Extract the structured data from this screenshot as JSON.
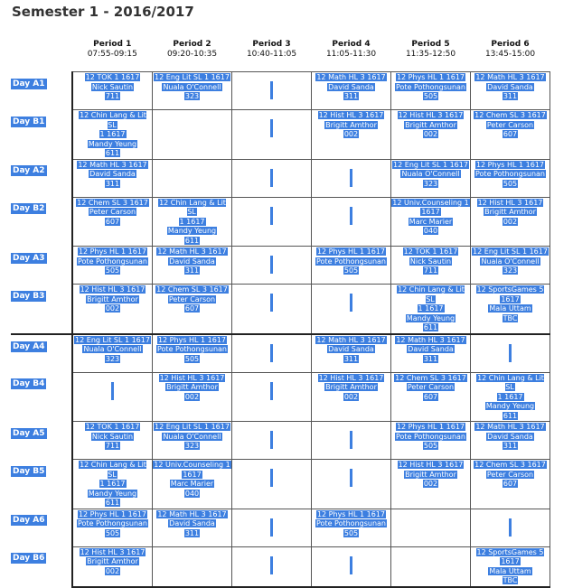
{
  "title": "Semester 1 - 2016/2017",
  "periods": [
    {
      "name": "Period 1",
      "time": "07:55-09:15"
    },
    {
      "name": "Period 2",
      "time": "09:20-10:35"
    },
    {
      "name": "Period 3",
      "time": "10:40-11:05"
    },
    {
      "name": "Period 4",
      "time": "11:05-11:30"
    },
    {
      "name": "Period 5",
      "time": "11:35-12:50"
    },
    {
      "name": "Period 6",
      "time": "13:45-15:00"
    }
  ],
  "days": [
    {
      "label": "Day A1",
      "cells": [
        [
          "12 TOK 1 1617",
          "Nick Sautin",
          "711"
        ],
        [
          "12 Eng Lit SL 1 1617",
          "Nuala O'Connell",
          "323"
        ],
        "bar",
        [
          "12 Math HL 3 1617",
          "David Sanda",
          "311"
        ],
        [
          "12 Phys HL 1 1617",
          "Pote Pothongsunan",
          "505"
        ],
        [
          "12 Math HL 3 1617",
          "David Sanda",
          "311"
        ]
      ]
    },
    {
      "label": "Day B1",
      "cells": [
        [
          "12 Chin Lang & Lit SL",
          "1 1617",
          "Mandy Yeung",
          "611"
        ],
        null,
        "bar",
        [
          "12 Hist HL 3 1617",
          "Brigitt Amthor",
          "002"
        ],
        [
          "12 Hist HL 3 1617",
          "Brigitt Amthor",
          "002"
        ],
        [
          "12 Chem SL 3 1617",
          "Peter Carson",
          "607"
        ]
      ]
    },
    {
      "label": "Day A2",
      "cells": [
        [
          "12 Math HL 3 1617",
          "David Sanda",
          "311"
        ],
        null,
        "bar",
        "bar",
        [
          "12 Eng Lit SL 1 1617",
          "Nuala O'Connell",
          "323"
        ],
        [
          "12 Phys HL 1 1617",
          "Pote Pothongsunan",
          "505"
        ]
      ]
    },
    {
      "label": "Day B2",
      "cells": [
        [
          "12 Chem SL 3 1617",
          "Peter Carson",
          "607"
        ],
        [
          "12 Chin Lang & Lit SL",
          "1 1617",
          "Mandy Yeung",
          "611"
        ],
        "bar",
        "bar",
        [
          "12 Univ.Counseling 1",
          "1617",
          "Marc Marier",
          "040"
        ],
        [
          "12 Hist HL 3 1617",
          "Brigitt Amthor",
          "002"
        ]
      ]
    },
    {
      "label": "Day A3",
      "cells": [
        [
          "12 Phys HL 1 1617",
          "Pote Pothongsunan",
          "505"
        ],
        [
          "12 Math HL 3 1617",
          "David Sanda",
          "311"
        ],
        "bar",
        [
          "12 Phys HL 1 1617",
          "Pote Pothongsunan",
          "505"
        ],
        [
          "12 TOK 1 1617",
          "Nick Sautin",
          "711"
        ],
        [
          "12 Eng Lit SL 1 1617",
          "Nuala O'Connell",
          "323"
        ]
      ]
    },
    {
      "label": "Day B3",
      "cells": [
        [
          "12 Hist HL 3 1617",
          "Brigitt Amthor",
          "002"
        ],
        [
          "12 Chem SL 3 1617",
          "Peter Carson",
          "607"
        ],
        "bar",
        "bar",
        [
          "12 Chin Lang & Lit SL",
          "1 1617",
          "Mandy Yeung",
          "611"
        ],
        [
          "12 SportsGames 5",
          "1617",
          "Mala Uttam",
          "TBC"
        ]
      ]
    },
    {
      "label": "Day A4",
      "sep": true,
      "cells": [
        [
          "12 Eng Lit SL 1 1617",
          "Nuala O'Connell",
          "323"
        ],
        [
          "12 Phys HL 1 1617",
          "Pote Pothongsunan",
          "505"
        ],
        "bar",
        [
          "12 Math HL 3 1617",
          "David Sanda",
          "311"
        ],
        [
          "12 Math HL 3 1617",
          "David Sanda",
          "311"
        ],
        "bar"
      ]
    },
    {
      "label": "Day B4",
      "cells": [
        "bar",
        [
          "12 Hist HL 3 1617",
          "Brigitt Amthor",
          "002"
        ],
        "bar",
        [
          "12 Hist HL 3 1617",
          "Brigitt Amthor",
          "002"
        ],
        [
          "12 Chem SL 3 1617",
          "Peter Carson",
          "607"
        ],
        [
          "12 Chin Lang & Lit SL",
          "1 1617",
          "Mandy Yeung",
          "611"
        ]
      ]
    },
    {
      "label": "Day A5",
      "cells": [
        [
          "12 TOK 1 1617",
          "Nick Sautin",
          "711"
        ],
        [
          "12 Eng Lit SL 1 1617",
          "Nuala O'Connell",
          "323"
        ],
        "bar",
        "bar",
        [
          "12 Phys HL 1 1617",
          "Pote Pothongsunan",
          "505"
        ],
        [
          "12 Math HL 3 1617",
          "David Sanda",
          "311"
        ]
      ]
    },
    {
      "label": "Day B5",
      "cells": [
        [
          "12 Chin Lang & Lit SL",
          "1 1617",
          "Mandy Yeung",
          "611"
        ],
        [
          "12 Univ.Counseling 1",
          "1617",
          "Marc Marier",
          "040"
        ],
        "bar",
        "bar",
        [
          "12 Hist HL 3 1617",
          "Brigitt Amthor",
          "002"
        ],
        [
          "12 Chem SL 3 1617",
          "Peter Carson",
          "607"
        ]
      ]
    },
    {
      "label": "Day A6",
      "cells": [
        [
          "12 Phys HL 1 1617",
          "Pote Pothongsunan",
          "505"
        ],
        [
          "12 Math HL 3 1617",
          "David Sanda",
          "311"
        ],
        "bar",
        [
          "12 Phys HL 1 1617",
          "Pote Pothongsunan",
          "505"
        ],
        null,
        "bar"
      ]
    },
    {
      "label": "Day B6",
      "last": true,
      "cells": [
        [
          "12 Hist HL 3 1617",
          "Brigitt Amthor",
          "002"
        ],
        null,
        "bar",
        "bar",
        null,
        [
          "12 SportsGames 5",
          "1617",
          "Mala Uttam",
          "TBC"
        ]
      ]
    }
  ]
}
